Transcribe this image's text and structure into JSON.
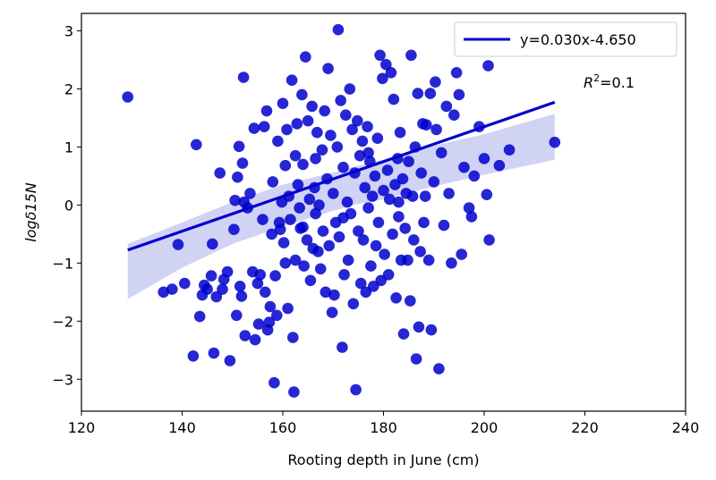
{
  "chart_data": {
    "type": "scatter",
    "xlabel": "Rooting depth in June (cm)",
    "ylabel": "logδ15N",
    "xlim": [
      120,
      240
    ],
    "ylim": [
      -3.55,
      3.3
    ],
    "xticks": [
      120,
      140,
      160,
      180,
      200,
      220,
      240
    ],
    "yticks": [
      -3,
      -2,
      -1,
      0,
      1,
      2,
      3
    ],
    "xtick_labels": [
      "120",
      "140",
      "160",
      "180",
      "200",
      "220",
      "240"
    ],
    "ytick_labels": [
      "−3",
      "−2",
      "−1",
      "0",
      "1",
      "2",
      "3"
    ],
    "grid": false,
    "legend_position": "top-right",
    "colors": {
      "points": "#0000cd",
      "line": "#0000cd",
      "ci_band": "#c9cbf3"
    },
    "series": [
      {
        "name": "",
        "values": [
          [
            129.2,
            1.86
          ],
          [
            136.3,
            -1.5
          ],
          [
            138.0,
            -1.45
          ],
          [
            139.2,
            -0.68
          ],
          [
            140.5,
            -1.35
          ],
          [
            142.2,
            -2.6
          ],
          [
            142.8,
            1.04
          ],
          [
            143.5,
            -1.92
          ],
          [
            144.0,
            -1.55
          ],
          [
            144.4,
            -1.38
          ],
          [
            145.0,
            -1.45
          ],
          [
            145.8,
            -1.22
          ],
          [
            146.0,
            -0.67
          ],
          [
            146.3,
            -2.55
          ],
          [
            146.8,
            -1.58
          ],
          [
            147.5,
            0.55
          ],
          [
            148.0,
            -1.45
          ],
          [
            148.3,
            -1.28
          ],
          [
            149.0,
            -1.15
          ],
          [
            149.5,
            -2.68
          ],
          [
            150.3,
            -0.42
          ],
          [
            150.8,
            -1.9
          ],
          [
            150.5,
            0.08
          ],
          [
            151.0,
            0.48
          ],
          [
            151.3,
            1.01
          ],
          [
            151.5,
            -1.4
          ],
          [
            151.8,
            -1.57
          ],
          [
            152.0,
            0.72
          ],
          [
            152.3,
            0.05
          ],
          [
            152.5,
            -2.25
          ],
          [
            152.2,
            2.2
          ],
          [
            153.0,
            -0.05
          ],
          [
            153.5,
            0.2
          ],
          [
            154.0,
            -1.15
          ],
          [
            154.3,
            1.32
          ],
          [
            154.5,
            -2.32
          ],
          [
            155.0,
            -1.35
          ],
          [
            155.2,
            -2.05
          ],
          [
            155.5,
            -1.2
          ],
          [
            156.0,
            -0.25
          ],
          [
            156.3,
            1.35
          ],
          [
            156.5,
            -1.5
          ],
          [
            156.8,
            1.62
          ],
          [
            157.0,
            -2.15
          ],
          [
            157.3,
            -2.02
          ],
          [
            157.5,
            -1.75
          ],
          [
            157.8,
            -0.5
          ],
          [
            158.0,
            0.4
          ],
          [
            158.3,
            -3.06
          ],
          [
            158.5,
            -1.22
          ],
          [
            158.8,
            -1.9
          ],
          [
            159.0,
            1.1
          ],
          [
            159.3,
            -0.3
          ],
          [
            159.5,
            -0.42
          ],
          [
            159.8,
            0.05
          ],
          [
            160.0,
            1.75
          ],
          [
            160.2,
            -0.65
          ],
          [
            160.5,
            -1.0
          ],
          [
            160.5,
            0.68
          ],
          [
            160.8,
            1.3
          ],
          [
            161.0,
            -1.78
          ],
          [
            161.2,
            0.15
          ],
          [
            161.5,
            -0.25
          ],
          [
            161.8,
            2.15
          ],
          [
            162.0,
            -2.28
          ],
          [
            162.2,
            -3.22
          ],
          [
            162.5,
            -0.95
          ],
          [
            162.5,
            0.85
          ],
          [
            162.8,
            1.4
          ],
          [
            163.0,
            0.35
          ],
          [
            163.3,
            -0.05
          ],
          [
            163.5,
            -0.4
          ],
          [
            163.8,
            1.9
          ],
          [
            164.0,
            0.7
          ],
          [
            164.2,
            -1.05
          ],
          [
            164.5,
            2.55
          ],
          [
            164.8,
            -0.6
          ],
          [
            165.0,
            1.45
          ],
          [
            165.3,
            0.1
          ],
          [
            165.5,
            -1.3
          ],
          [
            165.8,
            1.7
          ],
          [
            166.0,
            -0.75
          ],
          [
            166.3,
            0.3
          ],
          [
            166.5,
            -0.15
          ],
          [
            166.8,
            1.25
          ],
          [
            167.0,
            -0.8
          ],
          [
            167.2,
            0.0
          ],
          [
            167.5,
            -1.1
          ],
          [
            167.8,
            0.95
          ],
          [
            168.0,
            -0.45
          ],
          [
            168.3,
            1.62
          ],
          [
            168.5,
            -1.5
          ],
          [
            168.8,
            0.45
          ],
          [
            169.0,
            2.35
          ],
          [
            169.2,
            -0.7
          ],
          [
            169.5,
            1.2
          ],
          [
            169.8,
            -1.85
          ],
          [
            170.0,
            0.2
          ],
          [
            170.2,
            -1.55
          ],
          [
            170.5,
            -0.3
          ],
          [
            170.8,
            1.0
          ],
          [
            171.0,
            3.02
          ],
          [
            171.2,
            -0.55
          ],
          [
            171.5,
            1.8
          ],
          [
            171.8,
            -2.45
          ],
          [
            172.0,
            0.65
          ],
          [
            172.2,
            -1.2
          ],
          [
            172.5,
            1.55
          ],
          [
            172.8,
            0.05
          ],
          [
            173.0,
            -0.95
          ],
          [
            173.3,
            2.0
          ],
          [
            173.5,
            -0.15
          ],
          [
            173.8,
            1.3
          ],
          [
            174.0,
            -1.7
          ],
          [
            174.3,
            0.55
          ],
          [
            174.5,
            -3.18
          ],
          [
            174.8,
            1.45
          ],
          [
            175.0,
            -0.45
          ],
          [
            175.3,
            0.85
          ],
          [
            175.5,
            -1.35
          ],
          [
            175.8,
            1.1
          ],
          [
            176.0,
            -0.6
          ],
          [
            176.3,
            0.3
          ],
          [
            176.5,
            -1.5
          ],
          [
            176.8,
            1.35
          ],
          [
            177.0,
            -0.05
          ],
          [
            177.3,
            0.75
          ],
          [
            177.5,
            -1.05
          ],
          [
            177.8,
            0.15
          ],
          [
            178.0,
            -1.4
          ],
          [
            178.3,
            0.5
          ],
          [
            178.5,
            -0.7
          ],
          [
            178.8,
            1.15
          ],
          [
            179.0,
            -0.3
          ],
          [
            179.3,
            2.58
          ],
          [
            179.5,
            -1.3
          ],
          [
            179.8,
            2.18
          ],
          [
            180.0,
            0.25
          ],
          [
            180.2,
            -0.85
          ],
          [
            180.5,
            2.42
          ],
          [
            180.8,
            0.6
          ],
          [
            181.0,
            -1.2
          ],
          [
            181.2,
            0.1
          ],
          [
            181.5,
            2.28
          ],
          [
            181.8,
            -0.5
          ],
          [
            182.0,
            1.82
          ],
          [
            182.3,
            0.35
          ],
          [
            182.5,
            -1.6
          ],
          [
            182.8,
            0.8
          ],
          [
            183.0,
            -0.2
          ],
          [
            183.3,
            1.25
          ],
          [
            183.5,
            -0.95
          ],
          [
            183.8,
            0.45
          ],
          [
            184.0,
            -2.22
          ],
          [
            184.3,
            -0.4
          ],
          [
            184.5,
            0.2
          ],
          [
            184.8,
            -0.95
          ],
          [
            185.0,
            0.75
          ],
          [
            185.3,
            -1.65
          ],
          [
            185.5,
            2.58
          ],
          [
            185.8,
            0.15
          ],
          [
            186.0,
            -0.6
          ],
          [
            186.3,
            1.0
          ],
          [
            186.5,
            -2.65
          ],
          [
            186.8,
            1.92
          ],
          [
            187.0,
            -2.1
          ],
          [
            187.3,
            -0.8
          ],
          [
            187.5,
            0.55
          ],
          [
            187.8,
            1.4
          ],
          [
            188.0,
            -0.3
          ],
          [
            188.3,
            0.15
          ],
          [
            188.5,
            1.38
          ],
          [
            189.0,
            -0.95
          ],
          [
            189.3,
            1.92
          ],
          [
            189.5,
            -2.15
          ],
          [
            190.0,
            0.4
          ],
          [
            190.3,
            2.12
          ],
          [
            190.5,
            1.3
          ],
          [
            191.0,
            -2.82
          ],
          [
            191.5,
            0.9
          ],
          [
            192.0,
            -0.35
          ],
          [
            192.5,
            1.7
          ],
          [
            193.0,
            0.2
          ],
          [
            193.5,
            -1.0
          ],
          [
            194.0,
            1.55
          ],
          [
            194.5,
            2.28
          ],
          [
            195.0,
            1.9
          ],
          [
            195.5,
            -0.85
          ],
          [
            196.0,
            0.65
          ],
          [
            197.0,
            -0.05
          ],
          [
            197.5,
            -0.2
          ],
          [
            198.0,
            0.5
          ],
          [
            199.0,
            1.35
          ],
          [
            200.0,
            0.8
          ],
          [
            200.5,
            0.18
          ],
          [
            200.8,
            2.4
          ],
          [
            201.0,
            -0.6
          ],
          [
            203.0,
            0.68
          ],
          [
            205.0,
            0.95
          ],
          [
            214.0,
            1.08
          ],
          [
            164.0,
            -0.38
          ],
          [
            166.5,
            0.8
          ],
          [
            172.0,
            -0.22
          ],
          [
            177.0,
            0.9
          ],
          [
            183.0,
            0.05
          ]
        ]
      }
    ],
    "regression": {
      "label": "y=0.030x-4.650",
      "slope": 0.03,
      "intercept": -4.65,
      "x_range": [
        129.2,
        214.0
      ],
      "ci_band": {
        "x": [
          129.2,
          140,
          150,
          160,
          170,
          175,
          180,
          190,
          200,
          214
        ],
        "lower": [
          -1.62,
          -1.08,
          -0.67,
          -0.37,
          -0.1,
          0.02,
          0.1,
          0.32,
          0.52,
          0.78
        ],
        "upper": [
          -0.67,
          -0.3,
          0.05,
          0.35,
          0.56,
          0.68,
          0.78,
          1.02,
          1.22,
          1.57
        ]
      }
    },
    "annotation": {
      "text": "R",
      "sup": "2",
      "rest": "=0.1"
    }
  }
}
